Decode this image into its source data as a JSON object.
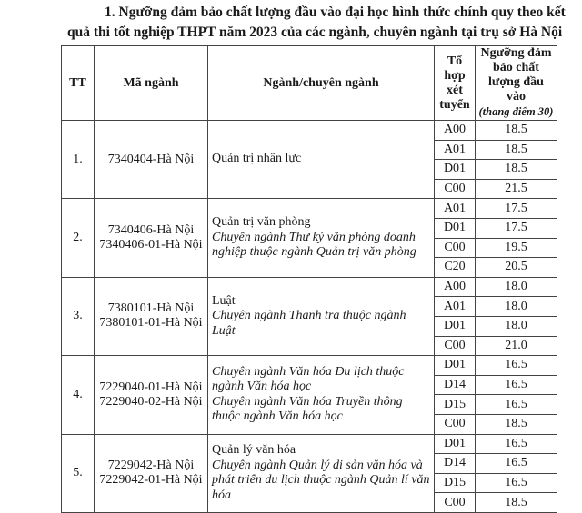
{
  "title_line1": "1. Ngưỡng đảm bảo chất lượng đầu vào đại học hình thức chính quy theo kết",
  "title_line2": "quả thi tốt nghiệp THPT năm 2023 của các ngành, chuyên ngành tại trụ sở Hà Nội",
  "headers": {
    "tt": "TT",
    "ma_nganh": "Mã ngành",
    "nganh": "Ngành/chuyên ngành",
    "to_hop": "Tổ hợp xét tuyển",
    "nguong": "Ngưỡng đảm bảo chất lượng đầu vào",
    "nguong_note": "(thang điểm 30)"
  },
  "rows": [
    {
      "tt": "1.",
      "codes": [
        "7340404-Hà Nội"
      ],
      "names": [
        {
          "text": "Quản trị nhân lực",
          "italic": false
        }
      ],
      "combos": [
        {
          "code": "A00",
          "score": "18.5"
        },
        {
          "code": "A01",
          "score": "18.5"
        },
        {
          "code": "D01",
          "score": "18.5"
        },
        {
          "code": "C00",
          "score": "21.5"
        }
      ]
    },
    {
      "tt": "2.",
      "codes": [
        "7340406-Hà Nội",
        "7340406-01-Hà Nội"
      ],
      "names": [
        {
          "text": "Quản trị văn phòng",
          "italic": false
        },
        {
          "text": "Chuyên ngành Thư ký văn phòng doanh nghiệp thuộc ngành Quản trị văn phòng",
          "italic": true
        }
      ],
      "combos": [
        {
          "code": "A01",
          "score": "17.5"
        },
        {
          "code": "D01",
          "score": "17.5"
        },
        {
          "code": "C00",
          "score": "19.5"
        },
        {
          "code": "C20",
          "score": "20.5"
        }
      ]
    },
    {
      "tt": "3.",
      "codes": [
        "7380101-Hà Nội",
        "7380101-01-Hà Nội"
      ],
      "names": [
        {
          "text": "Luật",
          "italic": false
        },
        {
          "text": "Chuyên ngành Thanh tra thuộc ngành Luật",
          "italic": true
        }
      ],
      "combos": [
        {
          "code": "A00",
          "score": "18.0"
        },
        {
          "code": "A01",
          "score": "18.0"
        },
        {
          "code": "D01",
          "score": "18.0"
        },
        {
          "code": "C00",
          "score": "21.0"
        }
      ]
    },
    {
      "tt": "4.",
      "codes": [
        "7229040-01-Hà Nội",
        "7229040-02-Hà Nội"
      ],
      "names": [
        {
          "text": "Chuyên ngành Văn hóa Du lịch thuộc ngành Văn hóa học",
          "italic": true
        },
        {
          "text": "Chuyên ngành Văn hóa Truyền thông thuộc ngành Văn hóa học",
          "italic": true
        }
      ],
      "combos": [
        {
          "code": "D01",
          "score": "16.5"
        },
        {
          "code": "D14",
          "score": "16.5"
        },
        {
          "code": "D15",
          "score": "16.5"
        },
        {
          "code": "C00",
          "score": "18.5"
        }
      ]
    },
    {
      "tt": "5.",
      "codes": [
        "7229042-Hà Nội",
        "7229042-01-Hà Nội"
      ],
      "names": [
        {
          "text": "Quản lý văn hóa",
          "italic": false
        },
        {
          "text": "Chuyên ngành Quản lý di sản văn hóa và phát triển du lịch thuộc ngành Quản lí văn hóa",
          "italic": true
        }
      ],
      "combos": [
        {
          "code": "D01",
          "score": "16.5"
        },
        {
          "code": "D14",
          "score": "16.5"
        },
        {
          "code": "D15",
          "score": "16.5"
        },
        {
          "code": "C00",
          "score": "18.5"
        }
      ]
    }
  ]
}
